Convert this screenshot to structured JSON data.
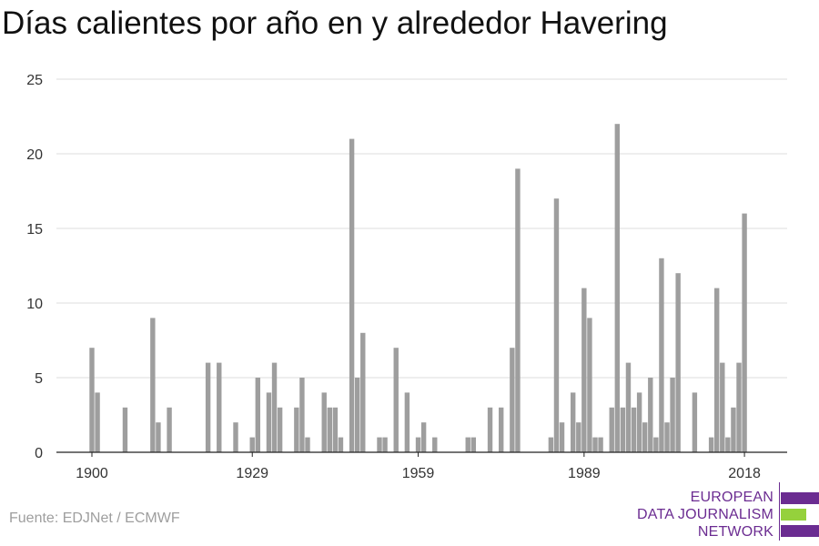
{
  "chart_data": {
    "type": "bar",
    "title": "Días calientes por año en y alrededor Havering",
    "xlabel": "",
    "ylabel": "",
    "x_range": [
      1900,
      2018
    ],
    "ylim": [
      0,
      25
    ],
    "y_ticks": [
      0,
      5,
      10,
      15,
      20,
      25
    ],
    "x_ticks": [
      1900,
      1929,
      1959,
      1989,
      2018
    ],
    "grid": true,
    "legend": "none",
    "bar_color": "#9e9e9e",
    "x": [
      1900,
      1901,
      1906,
      1911,
      1912,
      1914,
      1921,
      1923,
      1926,
      1929,
      1930,
      1932,
      1933,
      1934,
      1937,
      1938,
      1939,
      1942,
      1943,
      1944,
      1945,
      1947,
      1948,
      1949,
      1952,
      1953,
      1955,
      1957,
      1959,
      1960,
      1962,
      1968,
      1969,
      1972,
      1974,
      1976,
      1977,
      1983,
      1984,
      1985,
      1987,
      1988,
      1989,
      1990,
      1991,
      1992,
      1994,
      1995,
      1996,
      1997,
      1998,
      1999,
      2000,
      2001,
      2002,
      2003,
      2004,
      2005,
      2006,
      2009,
      2012,
      2013,
      2014,
      2015,
      2016,
      2017,
      2018
    ],
    "values": [
      7,
      4,
      3,
      9,
      2,
      3,
      6,
      6,
      2,
      1,
      5,
      4,
      6,
      3,
      3,
      5,
      1,
      4,
      3,
      3,
      1,
      21,
      5,
      8,
      1,
      1,
      7,
      4,
      1,
      2,
      1,
      1,
      1,
      3,
      3,
      7,
      19,
      1,
      17,
      2,
      4,
      2,
      11,
      9,
      1,
      1,
      3,
      22,
      3,
      6,
      3,
      4,
      2,
      5,
      1,
      13,
      2,
      5,
      12,
      4,
      1,
      11,
      6,
      1,
      3,
      6,
      16
    ]
  },
  "source": "Fuente: EDJNet / ECMWF",
  "logo": {
    "line1": "EUROPEAN",
    "line2": "DATA JOURNALISM",
    "line3": "NETWORK",
    "colors": {
      "purple": "#6b2c91",
      "green": "#95d13c"
    }
  }
}
